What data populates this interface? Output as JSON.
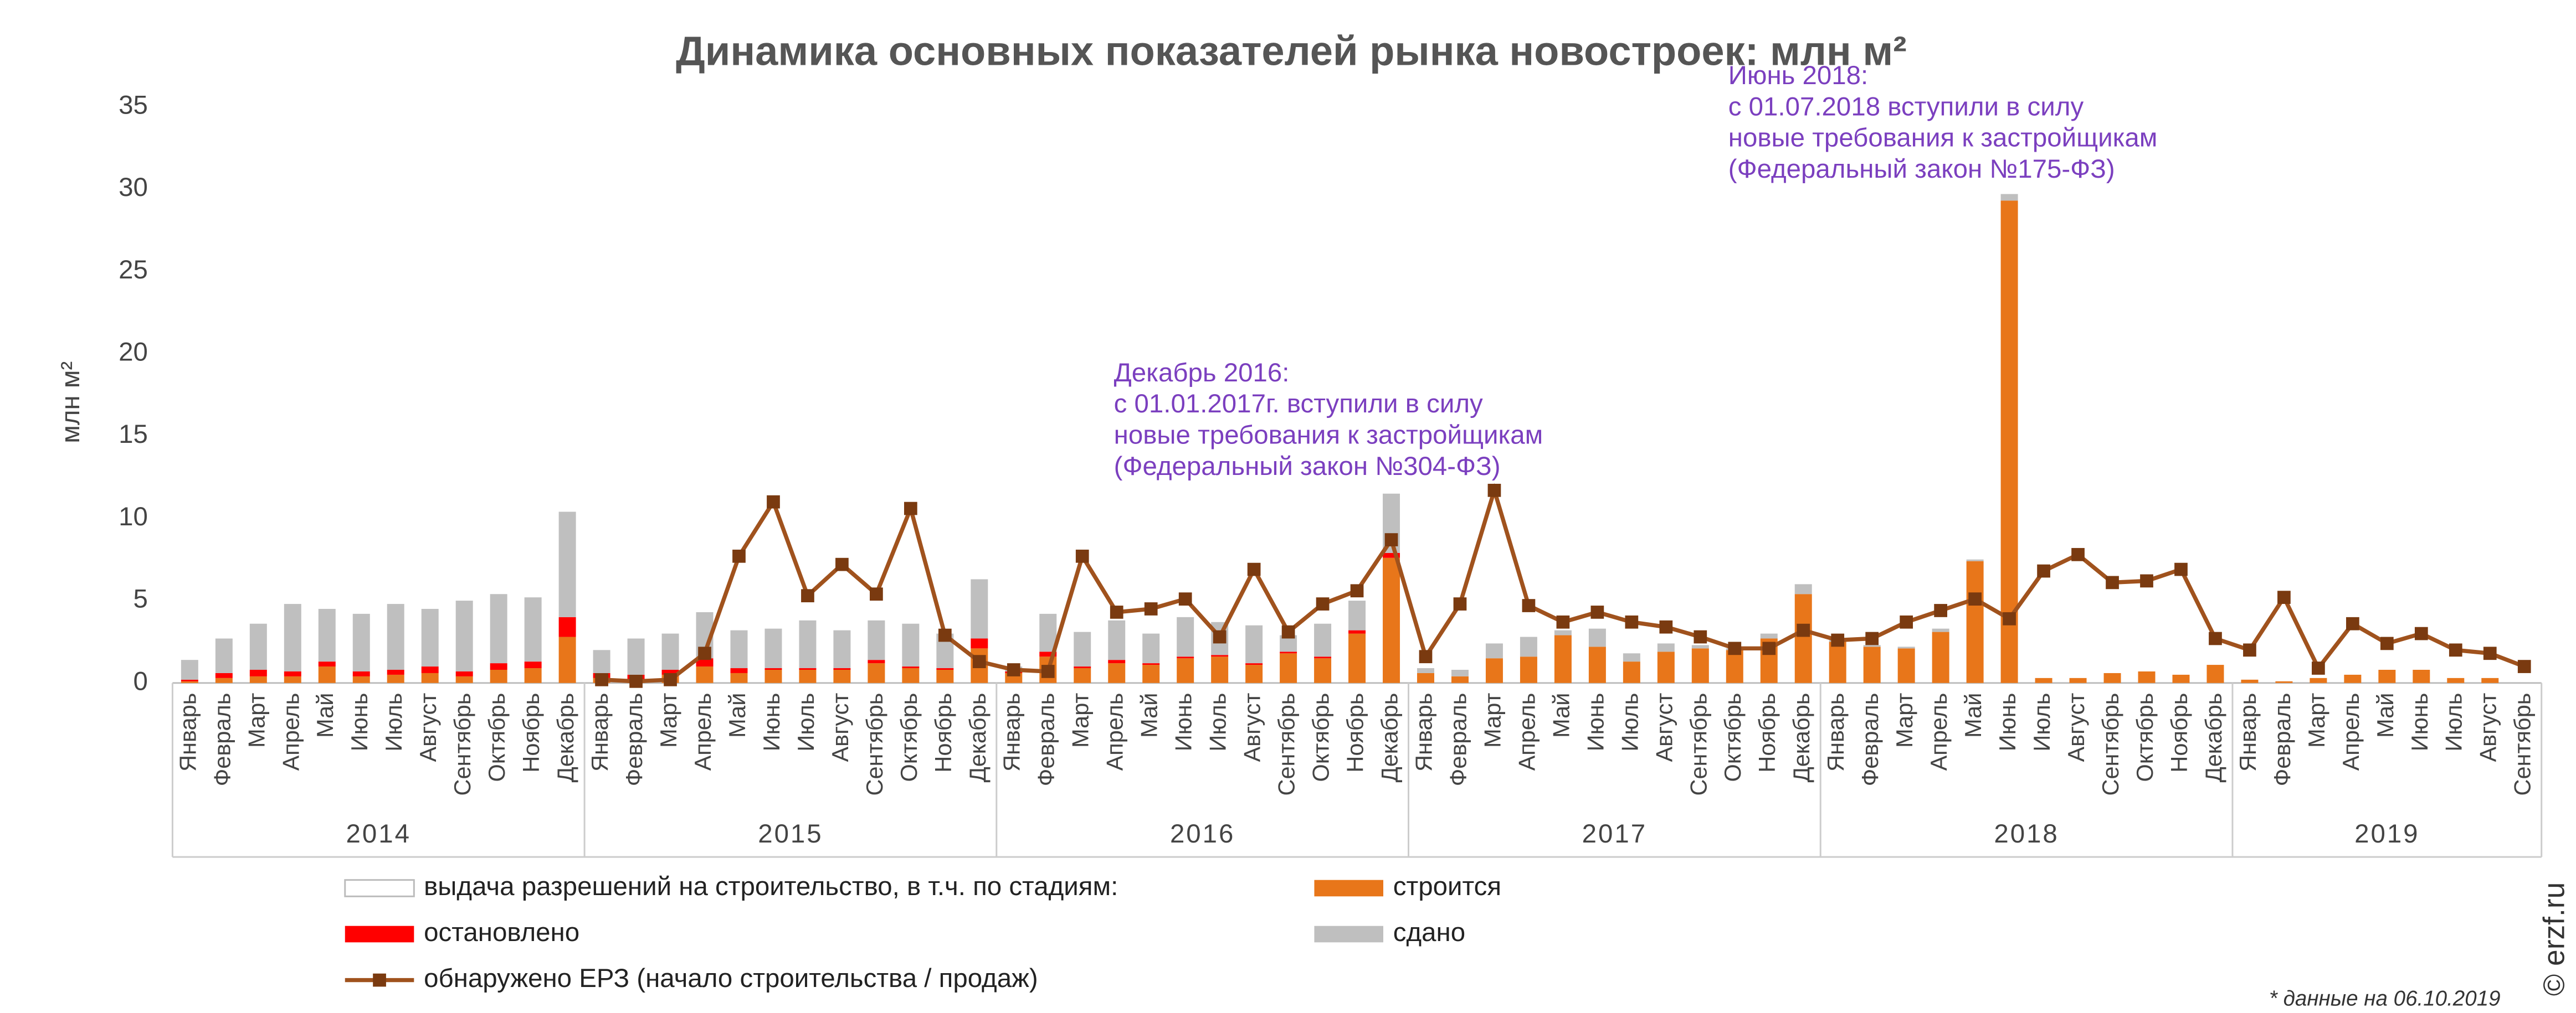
{
  "chart_data": {
    "type": "stacked-bar-line",
    "title": "Динамика основных показателей рынка новостроек: млн м²",
    "y_axis_label": "млн м²",
    "categories": [
      "Январь",
      "Февраль",
      "Март",
      "Апрель",
      "Май",
      "Июнь",
      "Июль",
      "Август",
      "Сентябрь",
      "Октябрь",
      "Ноябрь",
      "Декабрь",
      "Январь",
      "Февраль",
      "Март",
      "Апрель",
      "Май",
      "Июнь",
      "Июль",
      "Август",
      "Сентябрь",
      "Октябрь",
      "Ноябрь",
      "Декабрь",
      "Январь",
      "Февраль",
      "Март",
      "Апрель",
      "Май",
      "Июнь",
      "Июль",
      "Август",
      "Сентябрь",
      "Октябрь",
      "Ноябрь",
      "Декабрь",
      "Январь",
      "Февраль",
      "Март",
      "Апрель",
      "Май",
      "Июнь",
      "Июль",
      "Август",
      "Сентябрь",
      "Октябрь",
      "Ноябрь",
      "Декабрь",
      "Январь",
      "Февраль",
      "Март",
      "Апрель",
      "Май",
      "Июнь",
      "Июль",
      "Август",
      "Сентябрь",
      "Октябрь",
      "Ноябрь",
      "Декабрь",
      "Январь",
      "Февраль",
      "Март",
      "Апрель",
      "Май",
      "Июнь",
      "Июль",
      "Август",
      "Сентябрь"
    ],
    "x_groups": [
      {
        "name": "2014",
        "size": 12
      },
      {
        "name": "2015",
        "size": 12
      },
      {
        "name": "2016",
        "size": 12
      },
      {
        "name": "2017",
        "size": 12
      },
      {
        "name": "2018",
        "size": 12
      },
      {
        "name": "2019",
        "size": 9
      }
    ],
    "legend_header": {
      "name": "выдача разрешений на строительство, в т.ч. по стадиям:",
      "color": "#ffffff"
    },
    "series": [
      {
        "name": "строится",
        "kind": "bar",
        "color": "#e8761a",
        "values": [
          0.1,
          0.3,
          0.4,
          0.4,
          1.0,
          0.4,
          0.5,
          0.6,
          0.4,
          0.8,
          0.9,
          2.8,
          0.3,
          0.2,
          0.5,
          1.0,
          0.6,
          0.8,
          0.8,
          0.8,
          1.2,
          0.9,
          0.8,
          2.1,
          0.6,
          1.6,
          0.9,
          1.2,
          1.1,
          1.5,
          1.6,
          1.1,
          1.8,
          1.5,
          3.0,
          7.6,
          0.6,
          0.4,
          1.5,
          1.6,
          2.9,
          2.2,
          1.3,
          1.9,
          2.1,
          2.0,
          2.7,
          5.4,
          2.5,
          2.2,
          2.1,
          3.1,
          7.4,
          29.3,
          0.3,
          0.3,
          0.6,
          0.7,
          0.5,
          1.1,
          0.2,
          0.1,
          0.3,
          0.5,
          0.8,
          0.8,
          0.3,
          0.3,
          0
        ]
      },
      {
        "name": "остановлено",
        "kind": "bar",
        "color": "#ff0000",
        "values": [
          0.1,
          0.3,
          0.4,
          0.3,
          0.3,
          0.3,
          0.3,
          0.4,
          0.3,
          0.4,
          0.4,
          1.2,
          0.3,
          0.3,
          0.3,
          0.5,
          0.3,
          0.1,
          0.1,
          0.1,
          0.2,
          0.1,
          0.1,
          0.6,
          0.1,
          0.3,
          0.1,
          0.2,
          0.1,
          0.1,
          0.1,
          0.1,
          0.1,
          0.1,
          0.2,
          0.3,
          0,
          0,
          0,
          0,
          0,
          0,
          0,
          0,
          0,
          0,
          0,
          0,
          0,
          0,
          0,
          0,
          0,
          0,
          0,
          0,
          0,
          0,
          0,
          0,
          0,
          0,
          0,
          0,
          0,
          0,
          0,
          0,
          0
        ]
      },
      {
        "name": "сдано",
        "kind": "bar",
        "color": "#bfbfbf",
        "values": [
          1.2,
          2.1,
          2.8,
          4.1,
          3.2,
          3.5,
          4.0,
          3.5,
          4.3,
          4.2,
          3.9,
          6.4,
          1.4,
          2.2,
          2.2,
          2.8,
          2.3,
          2.4,
          2.9,
          2.3,
          2.4,
          2.6,
          2.1,
          3.6,
          0.3,
          2.3,
          2.1,
          2.4,
          1.8,
          2.4,
          2.0,
          2.3,
          1.0,
          2.0,
          1.8,
          3.6,
          0.3,
          0.4,
          0.9,
          1.2,
          0.3,
          1.1,
          0.5,
          0.5,
          0.2,
          0.1,
          0.3,
          0.6,
          0.1,
          0.1,
          0.1,
          0.2,
          0.1,
          0.4,
          0,
          0,
          0,
          0,
          0,
          0,
          0,
          0,
          0,
          0,
          0,
          0,
          0,
          0,
          0
        ]
      },
      {
        "name": "обнаружено ЕРЗ (начало строительства / продаж)",
        "kind": "line",
        "color": "#a0521d",
        "values": [
          null,
          null,
          null,
          null,
          null,
          null,
          null,
          null,
          null,
          null,
          null,
          null,
          0.2,
          0.1,
          0.2,
          1.8,
          7.7,
          11.0,
          5.3,
          7.2,
          5.4,
          10.6,
          2.9,
          1.3,
          0.8,
          0.7,
          7.7,
          4.3,
          4.5,
          5.1,
          2.8,
          6.9,
          3.1,
          4.8,
          5.6,
          8.7,
          1.6,
          4.8,
          11.7,
          4.7,
          3.7,
          4.3,
          3.7,
          3.4,
          2.8,
          2.1,
          2.1,
          3.2,
          2.6,
          2.7,
          3.7,
          4.4,
          5.1,
          3.9,
          6.8,
          7.8,
          6.1,
          6.2,
          6.9,
          2.7,
          2.0,
          5.2,
          0.9,
          3.6,
          2.4,
          3.0,
          2.0,
          1.8,
          1.0
        ]
      }
    ],
    "ylim": [
      0,
      35
    ],
    "yticks": [
      0,
      5,
      10,
      15,
      20,
      25,
      30,
      35
    ],
    "grid": false,
    "annotations": [
      {
        "lines": [
          "Декабрь 2016:",
          "с 01.01.2017г. вступили в силу",
          "новые требования к застройщикам",
          "(Федеральный закон №304-ФЗ)"
        ]
      },
      {
        "lines": [
          "Июнь 2018:",
          "с 01.07.2018 вступили в силу",
          "новые требования к застройщикам",
          "(Федеральный закон №175-ФЗ)"
        ]
      }
    ],
    "note": "* данные на 06.10.2019",
    "source": "© erzf.ru"
  }
}
